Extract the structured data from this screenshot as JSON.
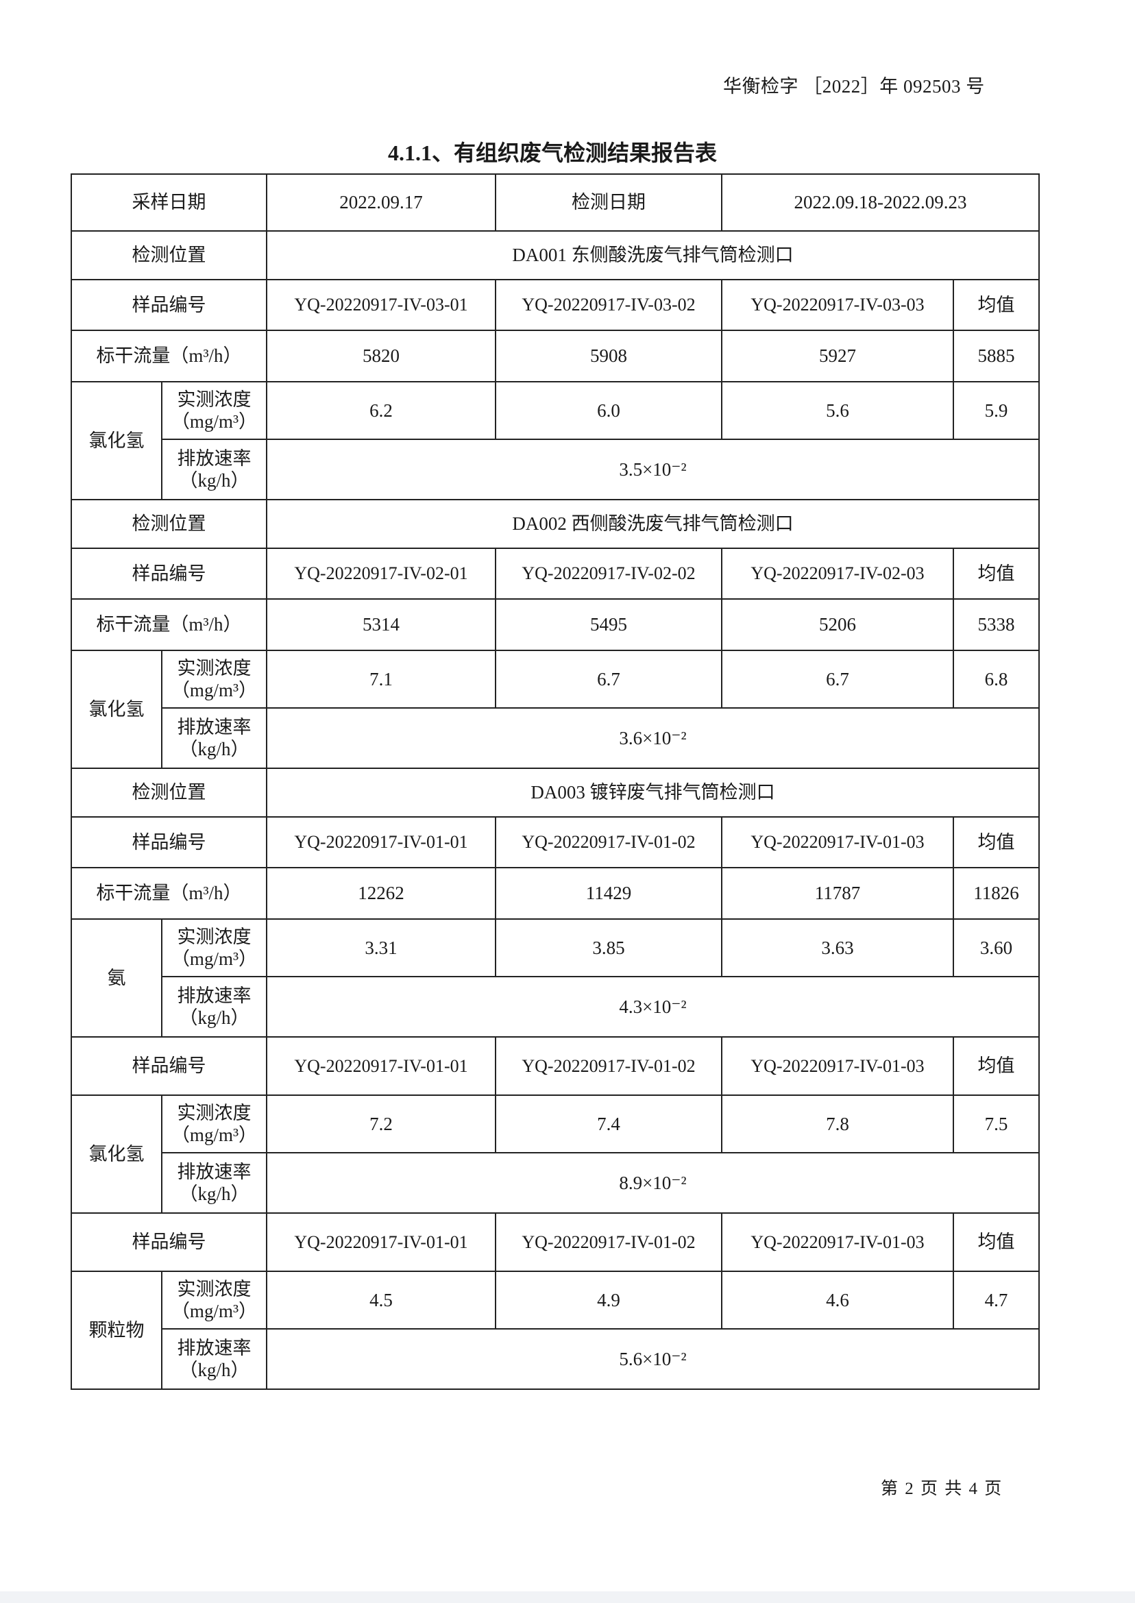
{
  "header": {
    "report_no": "华衡检字 ［2022］年 092503 号"
  },
  "title": "4.1.1、有组织废气检测结果报告表",
  "table": {
    "sampling_date_label": "采样日期",
    "sampling_date": "2022.09.17",
    "test_date_label": "检测日期",
    "test_date": "2022.09.18-2022.09.23",
    "location_label": "检测位置",
    "sample_label": "样品编号",
    "avg_label": "均值",
    "flow_label": "标干流量（m³/h）",
    "conc_label": "实测浓度",
    "conc_unit": "（mg/m³）",
    "rate_label": "排放速率",
    "rate_unit": "（kg/h）",
    "locations": [
      {
        "location": "DA001 东侧酸洗废气排气筒检测口",
        "groups": [
          {
            "sample_ids": [
              "YQ-20220917-IV-03-01",
              "YQ-20220917-IV-03-02",
              "YQ-20220917-IV-03-03"
            ],
            "flow": [
              "5820",
              "5908",
              "5927",
              "5885"
            ],
            "pollutant": "氯化氢",
            "conc": [
              "6.2",
              "6.0",
              "5.6",
              "5.9"
            ],
            "rate": "3.5×10⁻²"
          }
        ]
      },
      {
        "location": "DA002 西侧酸洗废气排气筒检测口",
        "groups": [
          {
            "sample_ids": [
              "YQ-20220917-IV-02-01",
              "YQ-20220917-IV-02-02",
              "YQ-20220917-IV-02-03"
            ],
            "flow": [
              "5314",
              "5495",
              "5206",
              "5338"
            ],
            "pollutant": "氯化氢",
            "conc": [
              "7.1",
              "6.7",
              "6.7",
              "6.8"
            ],
            "rate": "3.6×10⁻²"
          }
        ]
      },
      {
        "location": "DA003 镀锌废气排气筒检测口",
        "groups": [
          {
            "sample_ids": [
              "YQ-20220917-IV-01-01",
              "YQ-20220917-IV-01-02",
              "YQ-20220917-IV-01-03"
            ],
            "flow": [
              "12262",
              "11429",
              "11787",
              "11826"
            ],
            "pollutant": "氨",
            "conc": [
              "3.31",
              "3.85",
              "3.63",
              "3.60"
            ],
            "rate": "4.3×10⁻²"
          },
          {
            "sample_ids": [
              "YQ-20220917-IV-01-01",
              "YQ-20220917-IV-01-02",
              "YQ-20220917-IV-01-03"
            ],
            "pollutant": "氯化氢",
            "conc": [
              "7.2",
              "7.4",
              "7.8",
              "7.5"
            ],
            "rate": "8.9×10⁻²"
          },
          {
            "sample_ids": [
              "YQ-20220917-IV-01-01",
              "YQ-20220917-IV-01-02",
              "YQ-20220917-IV-01-03"
            ],
            "pollutant": "颗粒物",
            "conc": [
              "4.5",
              "4.9",
              "4.6",
              "4.7"
            ],
            "rate": "5.6×10⁻²"
          }
        ]
      }
    ]
  },
  "footer": {
    "page": "第 2 页 共 4 页"
  }
}
